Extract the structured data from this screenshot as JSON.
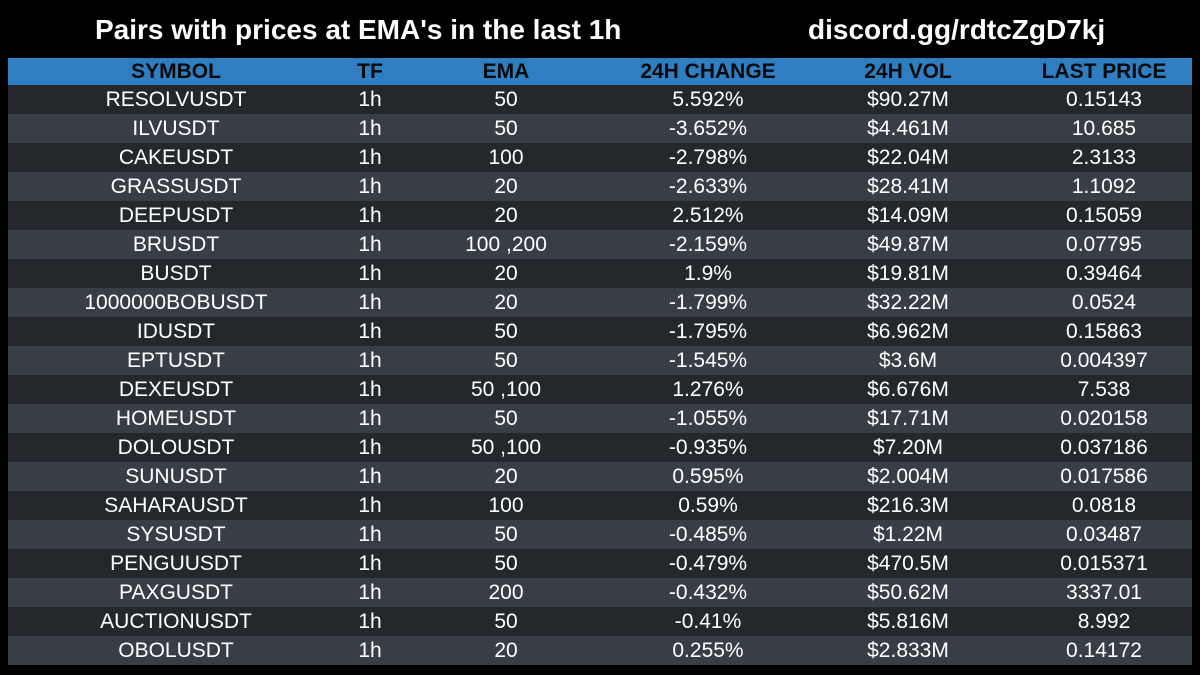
{
  "header": {
    "title": "Pairs with prices at EMA's in the last 1h",
    "link": "discord.gg/rdtcZgD7kj"
  },
  "colors": {
    "background": "#000000",
    "header_bar": "#2f7ec2",
    "row_dark": "#24282d",
    "row_light": "#383e45",
    "text": "#ffffff",
    "header_text": "#0a0a0a"
  },
  "table": {
    "columns": [
      "SYMBOL",
      "TF",
      "EMA",
      "24H CHANGE",
      "24H VOL",
      "LAST PRICE"
    ],
    "rows": [
      {
        "symbol": "RESOLVUSDT",
        "tf": "1h",
        "ema": "50",
        "change": "5.592%",
        "vol": "$90.27M",
        "price": "0.15143"
      },
      {
        "symbol": "ILVUSDT",
        "tf": "1h",
        "ema": "50",
        "change": "-3.652%",
        "vol": "$4.461M",
        "price": "10.685"
      },
      {
        "symbol": "CAKEUSDT",
        "tf": "1h",
        "ema": "100",
        "change": "-2.798%",
        "vol": "$22.04M",
        "price": "2.3133"
      },
      {
        "symbol": "GRASSUSDT",
        "tf": "1h",
        "ema": "20",
        "change": "-2.633%",
        "vol": "$28.41M",
        "price": "1.1092"
      },
      {
        "symbol": "DEEPUSDT",
        "tf": "1h",
        "ema": "20",
        "change": "2.512%",
        "vol": "$14.09M",
        "price": "0.15059"
      },
      {
        "symbol": "BRUSDT",
        "tf": "1h",
        "ema": "100 ,200",
        "change": "-2.159%",
        "vol": "$49.87M",
        "price": "0.07795"
      },
      {
        "symbol": "BUSDT",
        "tf": "1h",
        "ema": "20",
        "change": "1.9%",
        "vol": "$19.81M",
        "price": "0.39464"
      },
      {
        "symbol": "1000000BOBUSDT",
        "tf": "1h",
        "ema": "20",
        "change": "-1.799%",
        "vol": "$32.22M",
        "price": "0.0524"
      },
      {
        "symbol": "IDUSDT",
        "tf": "1h",
        "ema": "50",
        "change": "-1.795%",
        "vol": "$6.962M",
        "price": "0.15863"
      },
      {
        "symbol": "EPTUSDT",
        "tf": "1h",
        "ema": "50",
        "change": "-1.545%",
        "vol": "$3.6M",
        "price": "0.004397"
      },
      {
        "symbol": "DEXEUSDT",
        "tf": "1h",
        "ema": "50 ,100",
        "change": "1.276%",
        "vol": "$6.676M",
        "price": "7.538"
      },
      {
        "symbol": "HOMEUSDT",
        "tf": "1h",
        "ema": "50",
        "change": "-1.055%",
        "vol": "$17.71M",
        "price": "0.020158"
      },
      {
        "symbol": "DOLOUSDT",
        "tf": "1h",
        "ema": "50 ,100",
        "change": "-0.935%",
        "vol": "$7.20M",
        "price": "0.037186"
      },
      {
        "symbol": "SUNUSDT",
        "tf": "1h",
        "ema": "20",
        "change": "0.595%",
        "vol": "$2.004M",
        "price": "0.017586"
      },
      {
        "symbol": "SAHARAUSDT",
        "tf": "1h",
        "ema": "100",
        "change": "0.59%",
        "vol": "$216.3M",
        "price": "0.0818"
      },
      {
        "symbol": "SYSUSDT",
        "tf": "1h",
        "ema": "50",
        "change": "-0.485%",
        "vol": "$1.22M",
        "price": "0.03487"
      },
      {
        "symbol": "PENGUUSDT",
        "tf": "1h",
        "ema": "50",
        "change": "-0.479%",
        "vol": "$470.5M",
        "price": "0.015371"
      },
      {
        "symbol": "PAXGUSDT",
        "tf": "1h",
        "ema": "200",
        "change": "-0.432%",
        "vol": "$50.62M",
        "price": "3337.01"
      },
      {
        "symbol": "AUCTIONUSDT",
        "tf": "1h",
        "ema": "50",
        "change": "-0.41%",
        "vol": "$5.816M",
        "price": "8.992"
      },
      {
        "symbol": "OBOLUSDT",
        "tf": "1h",
        "ema": "20",
        "change": "0.255%",
        "vol": "$2.833M",
        "price": "0.14172"
      }
    ]
  }
}
